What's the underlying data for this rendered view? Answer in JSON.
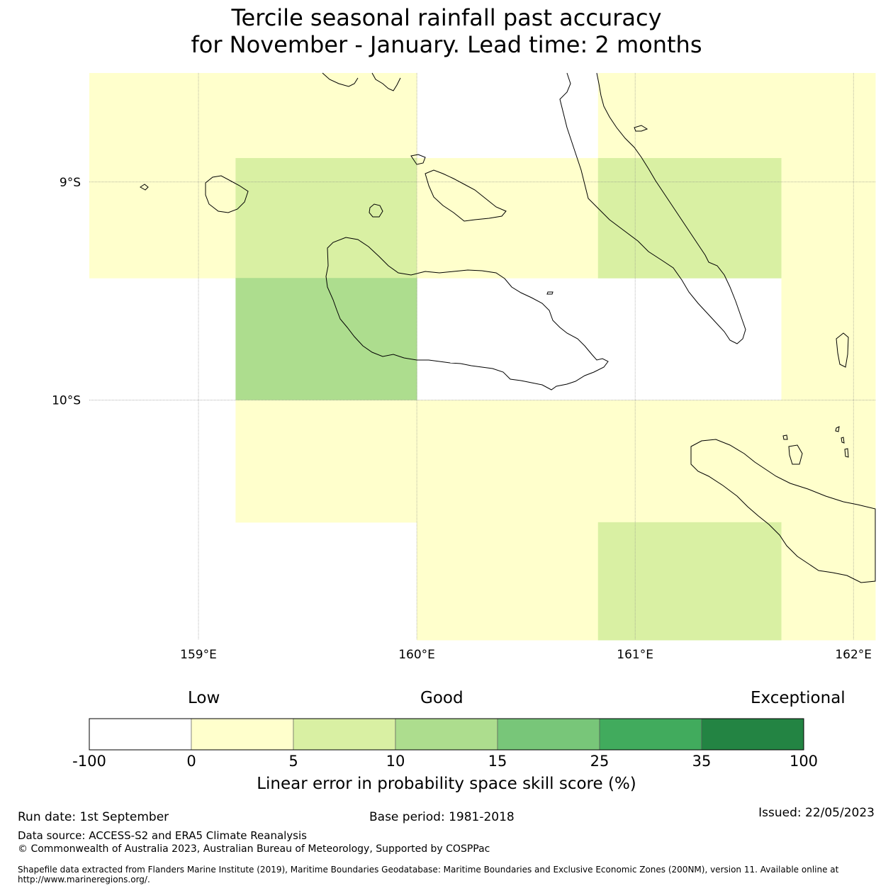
{
  "title_line1": "Tercile seasonal rainfall past accuracy",
  "title_line2": "for November - January. Lead time: 2 months",
  "map": {
    "lon_range": [
      158.5,
      162.1
    ],
    "lat_range": [
      -8.5,
      -11.1
    ],
    "lat_labels": [
      {
        "lat": -9,
        "text": "9°S"
      },
      {
        "lat": -10,
        "text": "10°S"
      }
    ],
    "lon_labels": [
      {
        "lon": 159,
        "text": "159°E"
      },
      {
        "lon": 160,
        "text": "160°E"
      },
      {
        "lon": 161,
        "text": "161°E"
      },
      {
        "lon": 162,
        "text": "162°E"
      }
    ],
    "grid_cell_size_deg": 0.833,
    "cells": [
      {
        "lon0": 158.5,
        "lon1": 159.17,
        "lat0": -8.5,
        "lat1": -8.89,
        "cat": 1
      },
      {
        "lon0": 159.17,
        "lon1": 160.0,
        "lat0": -8.5,
        "lat1": -8.89,
        "cat": 1
      },
      {
        "lon0": 160.83,
        "lon1": 161.67,
        "lat0": -8.5,
        "lat1": -8.89,
        "cat": 1
      },
      {
        "lon0": 161.67,
        "lon1": 162.1,
        "lat0": -8.5,
        "lat1": -8.89,
        "cat": 1
      },
      {
        "lon0": 158.5,
        "lon1": 159.17,
        "lat0": -8.89,
        "lat1": -9.44,
        "cat": 1
      },
      {
        "lon0": 159.17,
        "lon1": 160.0,
        "lat0": -8.89,
        "lat1": -9.44,
        "cat": 2
      },
      {
        "lon0": 160.0,
        "lon1": 160.83,
        "lat0": -8.89,
        "lat1": -9.44,
        "cat": 1
      },
      {
        "lon0": 160.83,
        "lon1": 161.67,
        "lat0": -8.89,
        "lat1": -9.44,
        "cat": 2
      },
      {
        "lon0": 161.67,
        "lon1": 162.1,
        "lat0": -8.89,
        "lat1": -9.44,
        "cat": 1
      },
      {
        "lon0": 159.17,
        "lon1": 160.0,
        "lat0": -9.44,
        "lat1": -10.0,
        "cat": 3
      },
      {
        "lon0": 161.67,
        "lon1": 162.1,
        "lat0": -9.44,
        "lat1": -10.0,
        "cat": 1
      },
      {
        "lon0": 159.17,
        "lon1": 160.0,
        "lat0": -10.0,
        "lat1": -10.56,
        "cat": 1
      },
      {
        "lon0": 160.0,
        "lon1": 160.83,
        "lat0": -10.0,
        "lat1": -10.56,
        "cat": 1
      },
      {
        "lon0": 160.83,
        "lon1": 161.67,
        "lat0": -10.0,
        "lat1": -10.56,
        "cat": 1
      },
      {
        "lon0": 161.67,
        "lon1": 162.1,
        "lat0": -10.0,
        "lat1": -10.56,
        "cat": 1
      },
      {
        "lon0": 160.0,
        "lon1": 160.83,
        "lat0": -10.56,
        "lat1": -11.1,
        "cat": 1
      },
      {
        "lon0": 160.83,
        "lon1": 161.67,
        "lat0": -10.56,
        "lat1": -11.1,
        "cat": 2
      },
      {
        "lon0": 161.67,
        "lon1": 162.1,
        "lat0": -10.56,
        "lat1": -11.1,
        "cat": 1
      }
    ]
  },
  "colorbar": {
    "label_low": "Low",
    "label_good": "Good",
    "label_exceptional": "Exceptional",
    "ticks": [
      "-100",
      "0",
      "5",
      "10",
      "15",
      "25",
      "35",
      "100"
    ],
    "colors": [
      "#ffffff",
      "#ffffcc",
      "#d9f0a3",
      "#addd8e",
      "#78c679",
      "#41ab5d",
      "#238443"
    ],
    "xlabel": "Linear error in probability space skill score (%)"
  },
  "footer": {
    "run_date": "Run date: 1st September",
    "base_period": "Base period: 1981-2018",
    "issued": "Issued: 22/05/2023",
    "data_source": "Data source: ACCESS-S2 and ERA5 Climate Reanalysis",
    "copyright": "© Commonwealth of Australia 2023, Australian Bureau of Meteorology, Supported by COSPPac",
    "shapefile": "Shapefile data extracted from Flanders Marine Institute (2019), Maritime Boundaries Geodatabase: Maritime Boundaries and Exclusive Economic Zones (200NM), version 11. Available online at http://www.marineregions.org/."
  }
}
